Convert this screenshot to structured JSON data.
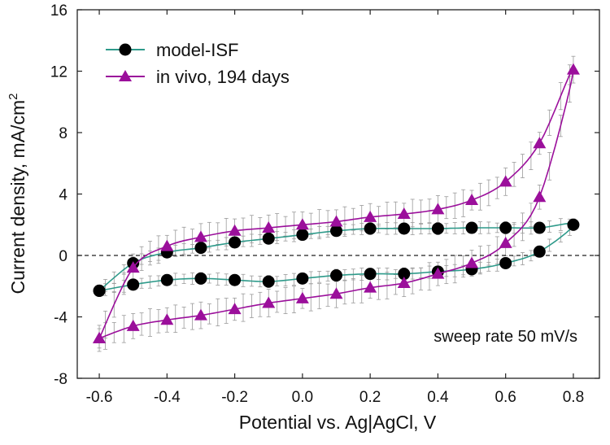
{
  "chart_data": {
    "type": "line",
    "title": "",
    "xlabel": "Potential vs. Ag|AgCl, V",
    "ylabel": "Current density, mA/cm",
    "ylabel_superscript": "2",
    "xlim": [
      -0.665,
      0.877
    ],
    "ylim": [
      -8,
      16
    ],
    "xticks": [
      "-0.6",
      "-0.4",
      "-0.2",
      "0.0",
      "0.2",
      "0.4",
      "0.6",
      "0.8"
    ],
    "xtick_values": [
      -0.6,
      -0.4,
      -0.2,
      0.0,
      0.2,
      0.4,
      0.6,
      0.8
    ],
    "yticks": [
      "-8",
      "-4",
      "0",
      "4",
      "8",
      "12",
      "16"
    ],
    "ytick_values": [
      -8,
      -4,
      0,
      4,
      8,
      12,
      16
    ],
    "zero_line": "dashed",
    "legend_position": "top-left",
    "annotation": "sweep rate 50 mV/s",
    "series": [
      {
        "name": "model-ISF",
        "marker": "circle",
        "color": "#2e9a8a",
        "marker_color": "#000000",
        "x": [
          -0.6,
          -0.5,
          -0.4,
          -0.3,
          -0.2,
          -0.1,
          0.0,
          0.1,
          0.2,
          0.3,
          0.4,
          0.5,
          0.6,
          0.7,
          0.8,
          0.7,
          0.6,
          0.5,
          0.4,
          0.3,
          0.2,
          0.1,
          0.0,
          -0.1,
          -0.2,
          -0.3,
          -0.4,
          -0.5,
          -0.6
        ],
        "y": [
          -2.3,
          -0.5,
          0.2,
          0.5,
          0.85,
          1.1,
          1.35,
          1.6,
          1.75,
          1.75,
          1.75,
          1.8,
          1.8,
          1.8,
          2.0,
          0.25,
          -0.5,
          -0.9,
          -1.05,
          -1.2,
          -1.2,
          -1.3,
          -1.5,
          -1.7,
          -1.6,
          -1.5,
          -1.6,
          -1.9,
          -2.3
        ],
        "error": 0.4
      },
      {
        "name": "in vivo, 194 days",
        "marker": "triangle",
        "color": "#9b0f9b",
        "marker_color": "#9b0f9b",
        "x": [
          -0.6,
          -0.5,
          -0.4,
          -0.3,
          -0.2,
          -0.1,
          0.0,
          0.1,
          0.2,
          0.3,
          0.4,
          0.5,
          0.6,
          0.7,
          0.8,
          0.7,
          0.6,
          0.5,
          0.4,
          0.3,
          0.2,
          0.1,
          0.0,
          -0.1,
          -0.2,
          -0.3,
          -0.4,
          -0.5,
          -0.6
        ],
        "y": [
          -5.4,
          -0.8,
          0.6,
          1.2,
          1.6,
          1.8,
          2.0,
          2.2,
          2.5,
          2.7,
          3.0,
          3.6,
          4.8,
          7.3,
          12.1,
          3.8,
          0.8,
          -0.5,
          -1.2,
          -1.8,
          -2.1,
          -2.5,
          -2.8,
          -3.1,
          -3.5,
          -3.9,
          -4.2,
          -4.6,
          -5.4
        ],
        "error": 0.9
      }
    ]
  }
}
